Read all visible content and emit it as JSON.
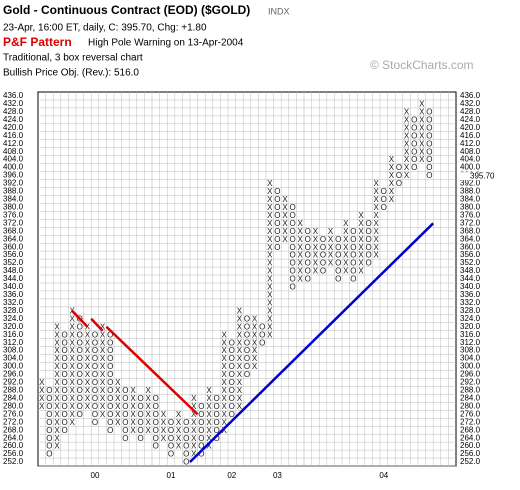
{
  "chart_data": {
    "type": "point-and-figure",
    "title": "Gold - Continuous Contract (EOD) ($GOLD)",
    "exchange": "INDX",
    "subtitle": "23-Apr, 16:00 ET, daily, C: 395.70, Chg: +1.80",
    "pattern_label": "P&F Pattern",
    "pattern_text": "High Pole Warning on 13-Apr-2004",
    "method": "Traditional, 3 box reversal chart",
    "objective": "Bullish Price Obj. (Rev.): 516.0",
    "watermark": "© StockCharts.com",
    "box_size": 4,
    "ylim": [
      252,
      436
    ],
    "yticks": [
      {
        "value": 436,
        "label": "436.0"
      },
      {
        "value": 432,
        "label": "432.0"
      },
      {
        "value": 428,
        "label": "428.0"
      },
      {
        "value": 424,
        "label": "424.0"
      },
      {
        "value": 420,
        "label": "420.0"
      },
      {
        "value": 416,
        "label": "416.0"
      },
      {
        "value": 412,
        "label": "412.0"
      },
      {
        "value": 408,
        "label": "408.0"
      },
      {
        "value": 404,
        "label": "404.0"
      },
      {
        "value": 400,
        "label": "400.0"
      },
      {
        "value": 396,
        "label": "396.0"
      },
      {
        "value": 392,
        "label": "392.0"
      },
      {
        "value": 388,
        "label": "388.0"
      },
      {
        "value": 384,
        "label": "384.0"
      },
      {
        "value": 380,
        "label": "380.0"
      },
      {
        "value": 376,
        "label": "376.0"
      },
      {
        "value": 372,
        "label": "372.0"
      },
      {
        "value": 368,
        "label": "368.0"
      },
      {
        "value": 364,
        "label": "364.0"
      },
      {
        "value": 360,
        "label": "360.0"
      },
      {
        "value": 356,
        "label": "356.0"
      },
      {
        "value": 352,
        "label": "352.0"
      },
      {
        "value": 348,
        "label": "348.0"
      },
      {
        "value": 344,
        "label": "344.0"
      },
      {
        "value": 340,
        "label": "340.0"
      },
      {
        "value": 336,
        "label": "336.0"
      },
      {
        "value": 332,
        "label": "332.0"
      },
      {
        "value": 328,
        "label": "328.0"
      },
      {
        "value": 324,
        "label": "324.0"
      },
      {
        "value": 320,
        "label": "320.0"
      },
      {
        "value": 316,
        "label": "316.0"
      },
      {
        "value": 312,
        "label": "312.0"
      },
      {
        "value": 308,
        "label": "308.0"
      },
      {
        "value": 304,
        "label": "304.0"
      },
      {
        "value": 300,
        "label": "300.0"
      },
      {
        "value": 296,
        "label": "296.0"
      },
      {
        "value": 292,
        "label": "292.0"
      },
      {
        "value": 288,
        "label": "288.0"
      },
      {
        "value": 284,
        "label": "284.0"
      },
      {
        "value": 280,
        "label": "280.0"
      },
      {
        "value": 276,
        "label": "276.0"
      },
      {
        "value": 272,
        "label": "272.0"
      },
      {
        "value": 268,
        "label": "268.0"
      },
      {
        "value": 264,
        "label": "264.0"
      },
      {
        "value": 260,
        "label": "260.0"
      },
      {
        "value": 256,
        "label": "256.0"
      },
      {
        "value": 252,
        "label": "252.0"
      }
    ],
    "last_price": {
      "value": 395.7,
      "label": "395.70"
    },
    "columns": [
      {
        "type": "X",
        "low": 280,
        "high": 292
      },
      {
        "type": "O",
        "low": 256,
        "high": 288
      },
      {
        "type": "X",
        "low": 260,
        "high": 320
      },
      {
        "type": "O",
        "low": 268,
        "high": 316
      },
      {
        "type": "X",
        "low": 272,
        "high": 328
      },
      {
        "type": "O",
        "low": 276,
        "high": 324
      },
      {
        "type": "X",
        "low": 280,
        "high": 320
      },
      {
        "type": "O",
        "low": 272,
        "high": 316
      },
      {
        "type": "X",
        "low": 276,
        "high": 320
      },
      {
        "type": "O",
        "low": 268,
        "high": 316
      },
      {
        "type": "X",
        "low": 272,
        "high": 292
      },
      {
        "type": "O",
        "low": 264,
        "high": 288
      },
      {
        "type": "X",
        "low": 268,
        "high": 288
      },
      {
        "type": "O",
        "low": 264,
        "high": 284
      },
      {
        "type": "X",
        "low": 268,
        "high": 288
      },
      {
        "type": "O",
        "low": 260,
        "high": 284
      },
      {
        "type": "X",
        "low": 264,
        "high": 276
      },
      {
        "type": "O",
        "low": 256,
        "high": 272
      },
      {
        "type": "X",
        "low": 260,
        "high": 276
      },
      {
        "type": "O",
        "low": 252,
        "high": 272
      },
      {
        "type": "X",
        "low": 256,
        "high": 284
      },
      {
        "type": "O",
        "low": 256,
        "high": 280
      },
      {
        "type": "X",
        "low": 260,
        "high": 288
      },
      {
        "type": "O",
        "low": 264,
        "high": 284
      },
      {
        "type": "X",
        "low": 268,
        "high": 316
      },
      {
        "type": "O",
        "low": 276,
        "high": 312
      },
      {
        "type": "X",
        "low": 280,
        "high": 328
      },
      {
        "type": "O",
        "low": 296,
        "high": 324
      },
      {
        "type": "X",
        "low": 300,
        "high": 324
      },
      {
        "type": "O",
        "low": 312,
        "high": 320
      },
      {
        "type": "X",
        "low": 316,
        "high": 392
      },
      {
        "type": "O",
        "low": 360,
        "high": 388
      },
      {
        "type": "X",
        "low": 364,
        "high": 384
      },
      {
        "type": "O",
        "low": 340,
        "high": 380
      },
      {
        "type": "X",
        "low": 344,
        "high": 372
      },
      {
        "type": "O",
        "low": 344,
        "high": 368
      },
      {
        "type": "X",
        "low": 348,
        "high": 368
      },
      {
        "type": "O",
        "low": 348,
        "high": 364
      },
      {
        "type": "X",
        "low": 352,
        "high": 368
      },
      {
        "type": "O",
        "low": 344,
        "high": 364
      },
      {
        "type": "X",
        "low": 348,
        "high": 372
      },
      {
        "type": "O",
        "low": 344,
        "high": 368
      },
      {
        "type": "X",
        "low": 348,
        "high": 376
      },
      {
        "type": "O",
        "low": 352,
        "high": 372
      },
      {
        "type": "X",
        "low": 356,
        "high": 392
      },
      {
        "type": "O",
        "low": 380,
        "high": 388
      },
      {
        "type": "X",
        "low": 384,
        "high": 404
      },
      {
        "type": "O",
        "low": 392,
        "high": 400
      },
      {
        "type": "X",
        "low": 396,
        "high": 428
      },
      {
        "type": "O",
        "low": 400,
        "high": 424
      },
      {
        "type": "X",
        "low": 404,
        "high": 432
      },
      {
        "type": "O",
        "low": 396,
        "high": 428
      }
    ],
    "xlabels": [
      {
        "label": "00",
        "col": 7
      },
      {
        "label": "01",
        "col": 17
      },
      {
        "label": "02",
        "col": 25
      },
      {
        "label": "03",
        "col": 31
      },
      {
        "label": "04",
        "col": 45
      }
    ],
    "trendlines": [
      {
        "color": "#dd0000",
        "from": [
          4,
          328
        ],
        "to": [
          6,
          320
        ]
      },
      {
        "color": "#dd0000",
        "from": [
          6.5,
          324
        ],
        "to": [
          8,
          318
        ]
      },
      {
        "color": "#dd0000",
        "from": [
          8.5,
          320
        ],
        "to": [
          20.5,
          276
        ]
      },
      {
        "color": "#0000cc",
        "from": [
          19.5,
          252
        ],
        "to": [
          51.5,
          372
        ]
      }
    ],
    "grid": true
  }
}
